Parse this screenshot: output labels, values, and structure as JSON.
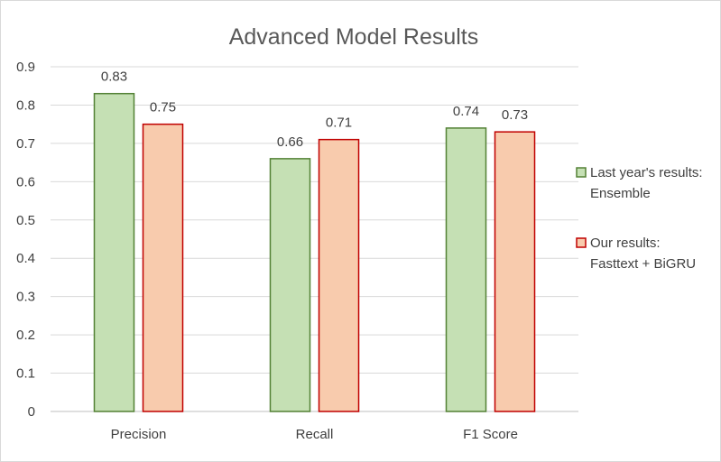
{
  "chart_data": {
    "type": "bar",
    "title": "Advanced Model Results",
    "xlabel": "",
    "ylabel": "",
    "categories": [
      "Precision",
      "Recall",
      "F1 Score"
    ],
    "series": [
      {
        "name": "Last year's results: Ensemble",
        "legend_lines": [
          "Last year's results:",
          "Ensemble"
        ],
        "values": [
          0.83,
          0.66,
          0.74
        ],
        "labels": [
          "0.83",
          "0.66",
          "0.74"
        ],
        "fill": "#c5e0b4",
        "stroke": "#538135"
      },
      {
        "name": "Our results: Fasttext + BiGRU",
        "legend_lines": [
          "Our results:",
          "Fasttext + BiGRU"
        ],
        "values": [
          0.75,
          0.71,
          0.73
        ],
        "labels": [
          "0.75",
          "0.71",
          "0.73"
        ],
        "fill": "#f8cbad",
        "stroke": "#c00000"
      }
    ],
    "ylim": [
      0,
      0.9
    ],
    "yticks": [
      "0",
      "0.1",
      "0.2",
      "0.3",
      "0.4",
      "0.5",
      "0.6",
      "0.7",
      "0.8",
      "0.9"
    ],
    "grid": true,
    "legend_position": "right"
  }
}
